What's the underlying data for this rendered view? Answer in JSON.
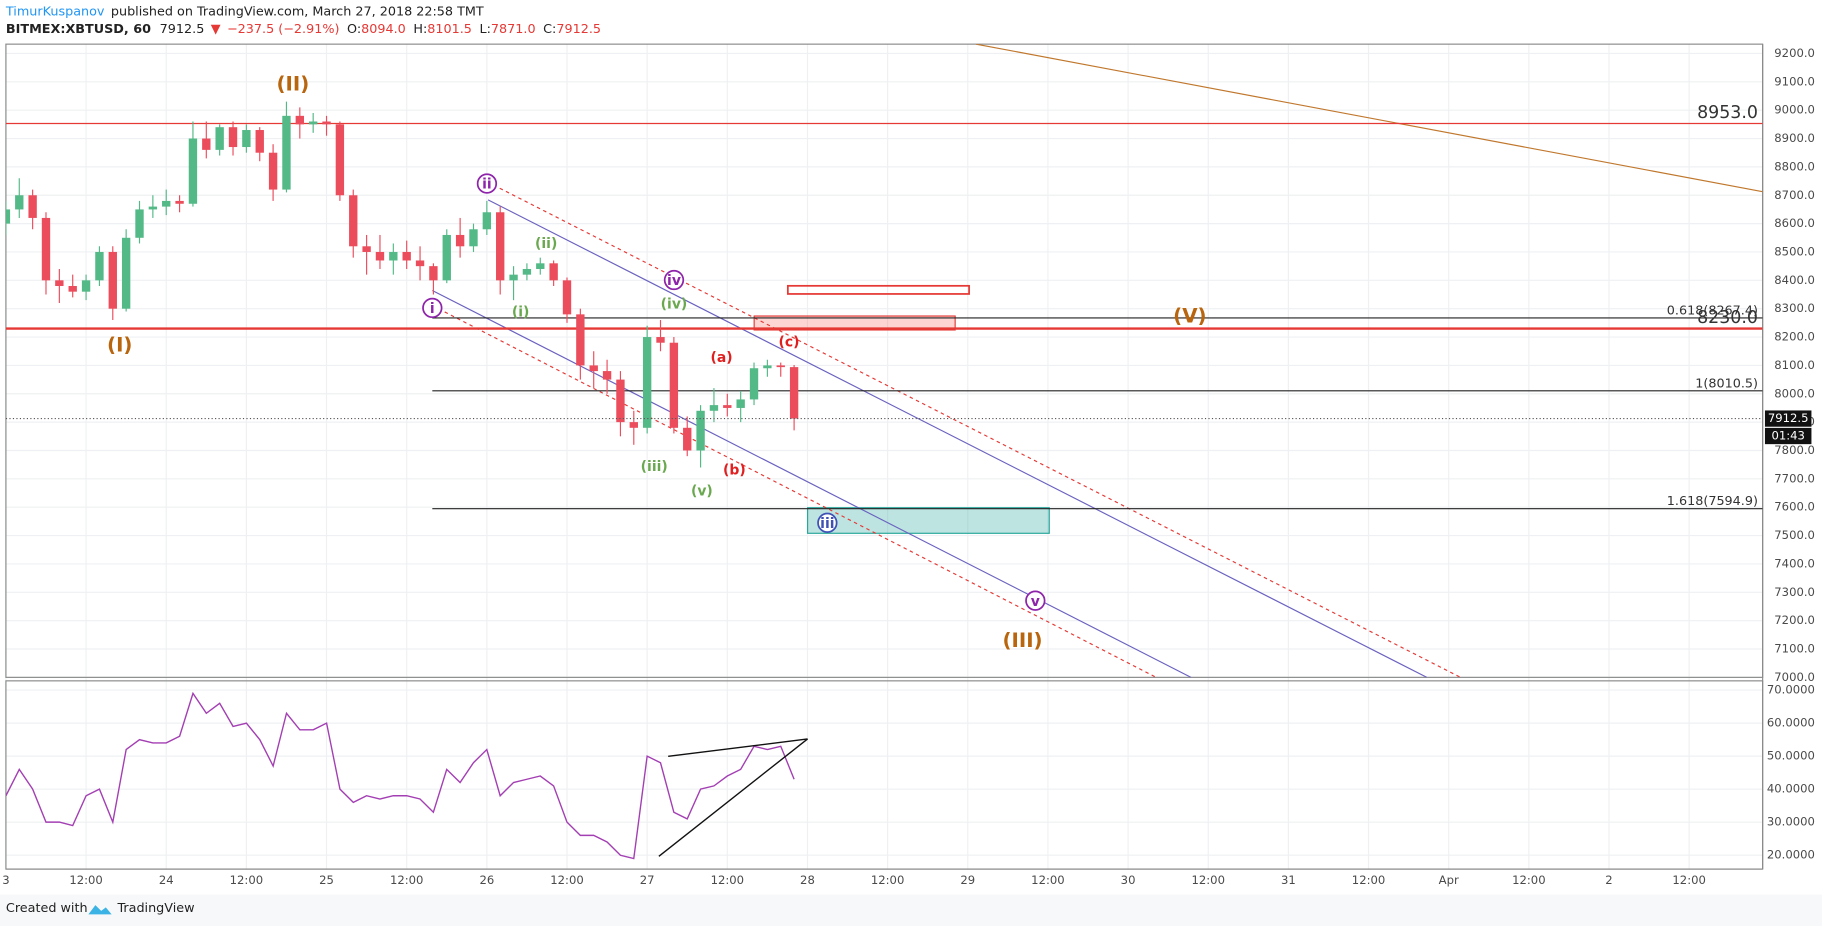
{
  "header": {
    "author": "TimurKuspanov",
    "published": "published on TradingView.com, March 27, 2018 22:58 TMT",
    "symbol": "BITMEX:XBTUSD, 60",
    "last": "7912.5",
    "arrow": "▼",
    "change": "−237.5 (−2.91%)",
    "ohlc": [
      {
        "label": "O:",
        "value": "8094.0"
      },
      {
        "label": "H:",
        "value": "8101.5"
      },
      {
        "label": "L:",
        "value": "7871.0"
      },
      {
        "label": "C:",
        "value": "7912.5"
      }
    ]
  },
  "chart_data": [
    {
      "type": "candlestick",
      "up_color": "#53b987",
      "down_color": "#eb4d5c",
      "grid": true,
      "x": [
        0,
        2,
        4,
        6,
        8,
        10,
        12,
        14,
        16,
        18,
        20,
        22,
        24,
        26,
        28,
        30,
        32,
        34,
        36,
        38,
        40,
        42,
        44,
        46,
        48,
        50,
        52,
        54,
        56,
        58,
        60,
        62,
        64,
        66,
        68,
        70,
        72,
        74,
        76,
        78,
        80,
        82,
        84,
        86,
        88,
        90,
        92,
        94,
        96,
        98,
        100,
        102,
        104,
        106,
        108,
        110,
        112,
        114,
        116,
        118
      ],
      "open": [
        8600,
        8650,
        8700,
        8620,
        8400,
        8380,
        8360,
        8400,
        8500,
        8300,
        8550,
        8650,
        8660,
        8680,
        8670,
        8900,
        8860,
        8940,
        8870,
        8930,
        8850,
        8720,
        8980,
        8950,
        8960,
        8950,
        8700,
        8520,
        8500,
        8470,
        8500,
        8470,
        8450,
        8400,
        8560,
        8520,
        8580,
        8640,
        8400,
        8420,
        8440,
        8460,
        8400,
        8280,
        8100,
        8080,
        8050,
        7900,
        7880,
        8200,
        8180,
        7880,
        7800,
        7940,
        7960,
        7950,
        7980,
        8090,
        8100,
        8094
      ],
      "high": [
        8680,
        8760,
        8720,
        8640,
        8440,
        8420,
        8420,
        8520,
        8520,
        8580,
        8680,
        8700,
        8720,
        8700,
        8960,
        8960,
        8950,
        8960,
        8950,
        8940,
        8880,
        9030,
        9010,
        8990,
        8980,
        8960,
        8720,
        8560,
        8560,
        8530,
        8540,
        8520,
        8460,
        8580,
        8620,
        8600,
        8680,
        8660,
        8450,
        8460,
        8480,
        8470,
        8410,
        8300,
        8150,
        8120,
        8080,
        7940,
        8240,
        8260,
        8200,
        7920,
        7960,
        8020,
        8000,
        8010,
        8110,
        8120,
        8110,
        8101.5
      ],
      "low": [
        8560,
        8620,
        8580,
        8350,
        8320,
        8340,
        8330,
        8380,
        8260,
        8290,
        8530,
        8620,
        8630,
        8640,
        8660,
        8830,
        8840,
        8840,
        8850,
        8820,
        8680,
        8710,
        8900,
        8920,
        8910,
        8680,
        8480,
        8420,
        8440,
        8420,
        8440,
        8400,
        8350,
        8390,
        8480,
        8500,
        8560,
        8350,
        8330,
        8400,
        8420,
        8380,
        8250,
        8050,
        8020,
        8000,
        7850,
        7820,
        7860,
        8150,
        7860,
        7780,
        7740,
        7900,
        7920,
        7900,
        7960,
        8060,
        8060,
        7871
      ],
      "close": [
        8650,
        8700,
        8620,
        8400,
        8380,
        8360,
        8400,
        8500,
        8300,
        8550,
        8650,
        8660,
        8680,
        8670,
        8900,
        8860,
        8940,
        8870,
        8930,
        8850,
        8720,
        8980,
        8950,
        8960,
        8950,
        8700,
        8520,
        8500,
        8470,
        8500,
        8470,
        8450,
        8400,
        8560,
        8520,
        8580,
        8640,
        8400,
        8420,
        8440,
        8460,
        8400,
        8280,
        8100,
        8080,
        8050,
        7900,
        7880,
        8200,
        8180,
        7880,
        7800,
        7940,
        7960,
        7950,
        7980,
        8090,
        8100,
        8094,
        7912.5
      ],
      "xlim": [
        0,
        263
      ],
      "ylim": [
        7000,
        9232.8
      ],
      "yticks": [
        {
          "value": 7000,
          "label": "7000.0"
        },
        {
          "value": 7100,
          "label": "7100.0"
        },
        {
          "value": 7200,
          "label": "7200.0"
        },
        {
          "value": 7300,
          "label": "7300.0"
        },
        {
          "value": 7400,
          "label": "7400.0"
        },
        {
          "value": 7500,
          "label": "7500.0"
        },
        {
          "value": 7600,
          "label": "7600.0"
        },
        {
          "value": 7700,
          "label": "7700.0"
        },
        {
          "value": 7800,
          "label": "7800.0"
        },
        {
          "value": 7900,
          "label": "7900.0"
        },
        {
          "value": 8000,
          "label": "8000.0"
        },
        {
          "value": 8100,
          "label": "8100.0"
        },
        {
          "value": 8200,
          "label": "8200.0"
        },
        {
          "value": 8300,
          "label": "8300.0"
        },
        {
          "value": 8400,
          "label": "8400.0"
        },
        {
          "value": 8500,
          "label": "8500.0"
        },
        {
          "value": 8600,
          "label": "8600.0"
        },
        {
          "value": 8700,
          "label": "8700.0"
        },
        {
          "value": 8800,
          "label": "8800.0"
        },
        {
          "value": 8900,
          "label": "8900.0"
        },
        {
          "value": 9000,
          "label": "9000.0"
        },
        {
          "value": 9100,
          "label": "9100.0"
        },
        {
          "value": 9200,
          "label": "9200.0"
        }
      ],
      "xticks": [
        {
          "value": 0,
          "label": "3"
        },
        {
          "value": 12,
          "label": "12:00"
        },
        {
          "value": 24,
          "label": "24"
        },
        {
          "value": 36,
          "label": "12:00"
        },
        {
          "value": 48,
          "label": "25"
        },
        {
          "value": 60,
          "label": "12:00"
        },
        {
          "value": 72,
          "label": "26"
        },
        {
          "value": 84,
          "label": "12:00"
        },
        {
          "value": 96,
          "label": "27"
        },
        {
          "value": 108,
          "label": "12:00"
        },
        {
          "value": 120,
          "label": "28"
        },
        {
          "value": 132,
          "label": "12:00"
        },
        {
          "value": 144,
          "label": "29"
        },
        {
          "value": 156,
          "label": "12:00"
        },
        {
          "value": 168,
          "label": "30"
        },
        {
          "value": 180,
          "label": "12:00"
        },
        {
          "value": 192,
          "label": "31"
        },
        {
          "value": 204,
          "label": "12:00"
        },
        {
          "value": 216,
          "label": "Apr"
        },
        {
          "value": 228,
          "label": "12:00"
        },
        {
          "value": 240,
          "label": "2"
        },
        {
          "value": 252,
          "label": "12:00"
        }
      ],
      "levels": [
        {
          "value": 8953.0,
          "label": "8953.0",
          "color": "#e53935"
        },
        {
          "value": 8230.0,
          "label": "8230.0",
          "color": "#e53935"
        },
        {
          "value": 8267.4,
          "label": "0.618(8267.4)",
          "color": "#222222"
        },
        {
          "value": 8010.5,
          "label": "1(8010.5)",
          "color": "#222222"
        },
        {
          "value": 7594.9,
          "label": "1.618(7594.9)",
          "color": "#222222"
        }
      ],
      "last_price": 7912.5,
      "countdown": "01:43",
      "annotations": [
        {
          "text": "(II)",
          "color": "#b8650e"
        },
        {
          "text": "(I)",
          "color": "#b8650e"
        },
        {
          "text": "(III)",
          "color": "#b8650e"
        },
        {
          "text": "(V)",
          "color": "#b8650e"
        },
        {
          "text": "ii",
          "color": "#8e24aa"
        },
        {
          "text": "i",
          "color": "#8e24aa"
        },
        {
          "text": "iv",
          "color": "#8e24aa"
        },
        {
          "text": "iii",
          "color": "#3f51b5"
        },
        {
          "text": "v",
          "color": "#8e24aa"
        },
        {
          "text": "(ii)",
          "color": "#6aa84f"
        },
        {
          "text": "(i)",
          "color": "#6aa84f"
        },
        {
          "text": "(iv)",
          "color": "#6aa84f"
        },
        {
          "text": "(iii)",
          "color": "#6aa84f"
        },
        {
          "text": "(v)",
          "color": "#6aa84f"
        },
        {
          "text": "(a)",
          "color": "#e02020"
        },
        {
          "text": "(b)",
          "color": "#e02020"
        },
        {
          "text": "(c)",
          "color": "#e02020"
        }
      ]
    },
    {
      "type": "line",
      "color": "#a33fb3",
      "grid": true,
      "x": [
        0,
        2,
        4,
        6,
        8,
        10,
        12,
        14,
        16,
        18,
        20,
        22,
        24,
        26,
        28,
        30,
        32,
        34,
        36,
        38,
        40,
        42,
        44,
        46,
        48,
        50,
        52,
        54,
        56,
        58,
        60,
        62,
        64,
        66,
        68,
        70,
        72,
        74,
        76,
        78,
        80,
        82,
        84,
        86,
        88,
        90,
        92,
        94,
        96,
        98,
        100,
        102,
        104,
        106,
        108,
        110,
        112,
        114,
        116,
        118
      ],
      "values": [
        38,
        46,
        40,
        30,
        30,
        29,
        38,
        40,
        30,
        52,
        55,
        54,
        54,
        56,
        69,
        63,
        66,
        59,
        60,
        55,
        47,
        63,
        58,
        58,
        60,
        40,
        36,
        38,
        37,
        38,
        38,
        37,
        33,
        46,
        42,
        48,
        52,
        38,
        42,
        43,
        44,
        41,
        30,
        26,
        26,
        24,
        20,
        19,
        50,
        48,
        33,
        31,
        40,
        41,
        44,
        46,
        53,
        52,
        53,
        43
      ],
      "xlim": [
        0,
        263
      ],
      "ylim": [
        15.8,
        72.8
      ],
      "yticks": [
        {
          "value": 20,
          "label": "20.0000"
        },
        {
          "value": 30,
          "label": "30.0000"
        },
        {
          "value": 40,
          "label": "40.0000"
        },
        {
          "value": 50,
          "label": "50.0000"
        },
        {
          "value": 60,
          "label": "60.0000"
        },
        {
          "value": 70,
          "label": "70.0000"
        }
      ]
    }
  ],
  "footer": {
    "created": "Created with",
    "brand": "TradingView"
  }
}
